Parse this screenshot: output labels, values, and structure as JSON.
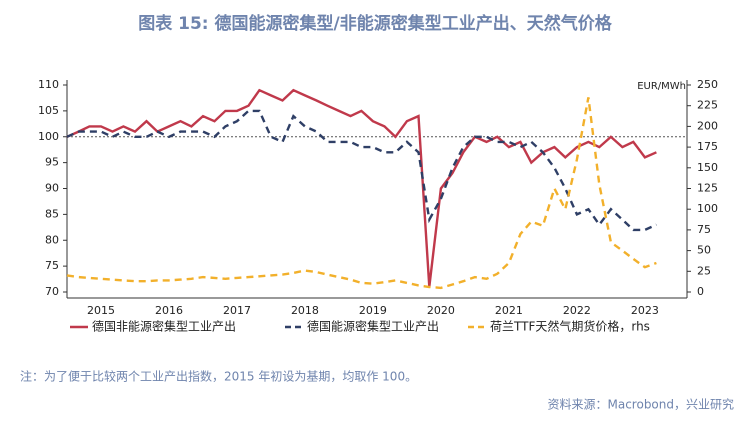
{
  "chart_data": {
    "type": "line",
    "title": "图表 15: 德国能源密集型/非能源密集型工业产出、天然气价格",
    "y2_label": "EUR/MWh",
    "note": "注：为了便于比较两个工业产出指数，2015 年初设为基期，均取作 100。",
    "source": "资料来源：Macrobond，兴业研究",
    "x": [
      2015,
      2015.17,
      2015.33,
      2015.5,
      2015.67,
      2015.83,
      2016,
      2016.17,
      2016.33,
      2016.5,
      2016.67,
      2016.83,
      2017,
      2017.17,
      2017.33,
      2017.5,
      2017.67,
      2017.83,
      2018,
      2018.17,
      2018.33,
      2018.5,
      2018.67,
      2018.83,
      2019,
      2019.17,
      2019.33,
      2019.5,
      2019.67,
      2019.83,
      2020,
      2020.17,
      2020.33,
      2020.5,
      2020.67,
      2020.83,
      2021,
      2021.17,
      2021.33,
      2021.5,
      2021.67,
      2021.83,
      2022,
      2022.17,
      2022.33,
      2022.5,
      2022.67,
      2022.83,
      2023,
      2023.17,
      2023.33,
      2023.5,
      2023.67
    ],
    "xlim": [
      2015,
      2024.12
    ],
    "xticks": [
      {
        "value": 2015.5,
        "label": "2015"
      },
      {
        "value": 2016.5,
        "label": "2016"
      },
      {
        "value": 2017.5,
        "label": "2017"
      },
      {
        "value": 2018.5,
        "label": "2018"
      },
      {
        "value": 2019.5,
        "label": "2019"
      },
      {
        "value": 2020.5,
        "label": "2020"
      },
      {
        "value": 2021.5,
        "label": "2021"
      },
      {
        "value": 2022.5,
        "label": "2022"
      },
      {
        "value": 2023.5,
        "label": "2023"
      }
    ],
    "ylim": [
      70,
      110
    ],
    "yticks": [
      70,
      75,
      80,
      85,
      90,
      95,
      100,
      105,
      110
    ],
    "y2lim": [
      0,
      250
    ],
    "y2ticks": [
      0,
      25,
      50,
      75,
      100,
      125,
      150,
      175,
      200,
      225,
      250
    ],
    "reference_y": 100,
    "series": [
      {
        "name": "德国非能源密集型工业产出",
        "color": "#c0394b",
        "dash": false,
        "values": [
          100,
          101,
          102,
          102,
          101,
          102,
          101,
          103,
          101,
          102,
          103,
          102,
          104,
          103,
          105,
          105,
          106,
          109,
          108,
          107,
          109,
          108,
          107,
          106,
          105,
          104,
          105,
          103,
          102,
          100,
          103,
          104,
          71,
          90,
          93,
          97,
          100,
          99,
          100,
          98,
          99,
          95,
          97,
          98,
          96,
          98,
          99,
          98,
          100,
          98,
          99,
          96,
          97
        ]
      },
      {
        "name": "德国能源密集型工业产出",
        "color": "#2f3f66",
        "dash": true,
        "values": [
          100,
          101,
          101,
          101,
          100,
          101,
          100,
          100,
          101,
          100,
          101,
          101,
          101,
          100,
          102,
          103,
          105,
          105,
          100,
          99,
          104,
          102,
          101,
          99,
          99,
          99,
          98,
          98,
          97,
          97,
          99,
          97,
          84,
          88,
          94,
          98,
          100,
          100,
          99,
          99,
          98,
          99,
          97,
          94,
          90,
          85,
          86,
          83,
          86,
          84,
          82,
          82,
          83
        ]
      },
      {
        "name": "荷兰TTF天然气期货价格，rhs",
        "color": "#f2b02b",
        "dash": true,
        "axis": "y2",
        "values": [
          20,
          18,
          17,
          16,
          15,
          14,
          13,
          13,
          14,
          14,
          15,
          16,
          18,
          17,
          16,
          17,
          18,
          19,
          20,
          21,
          23,
          26,
          24,
          21,
          18,
          15,
          11,
          10,
          12,
          14,
          11,
          8,
          6,
          5,
          9,
          13,
          18,
          16,
          22,
          35,
          70,
          85,
          80,
          125,
          100,
          160,
          235,
          130,
          60,
          50,
          40,
          30,
          35
        ]
      }
    ]
  }
}
